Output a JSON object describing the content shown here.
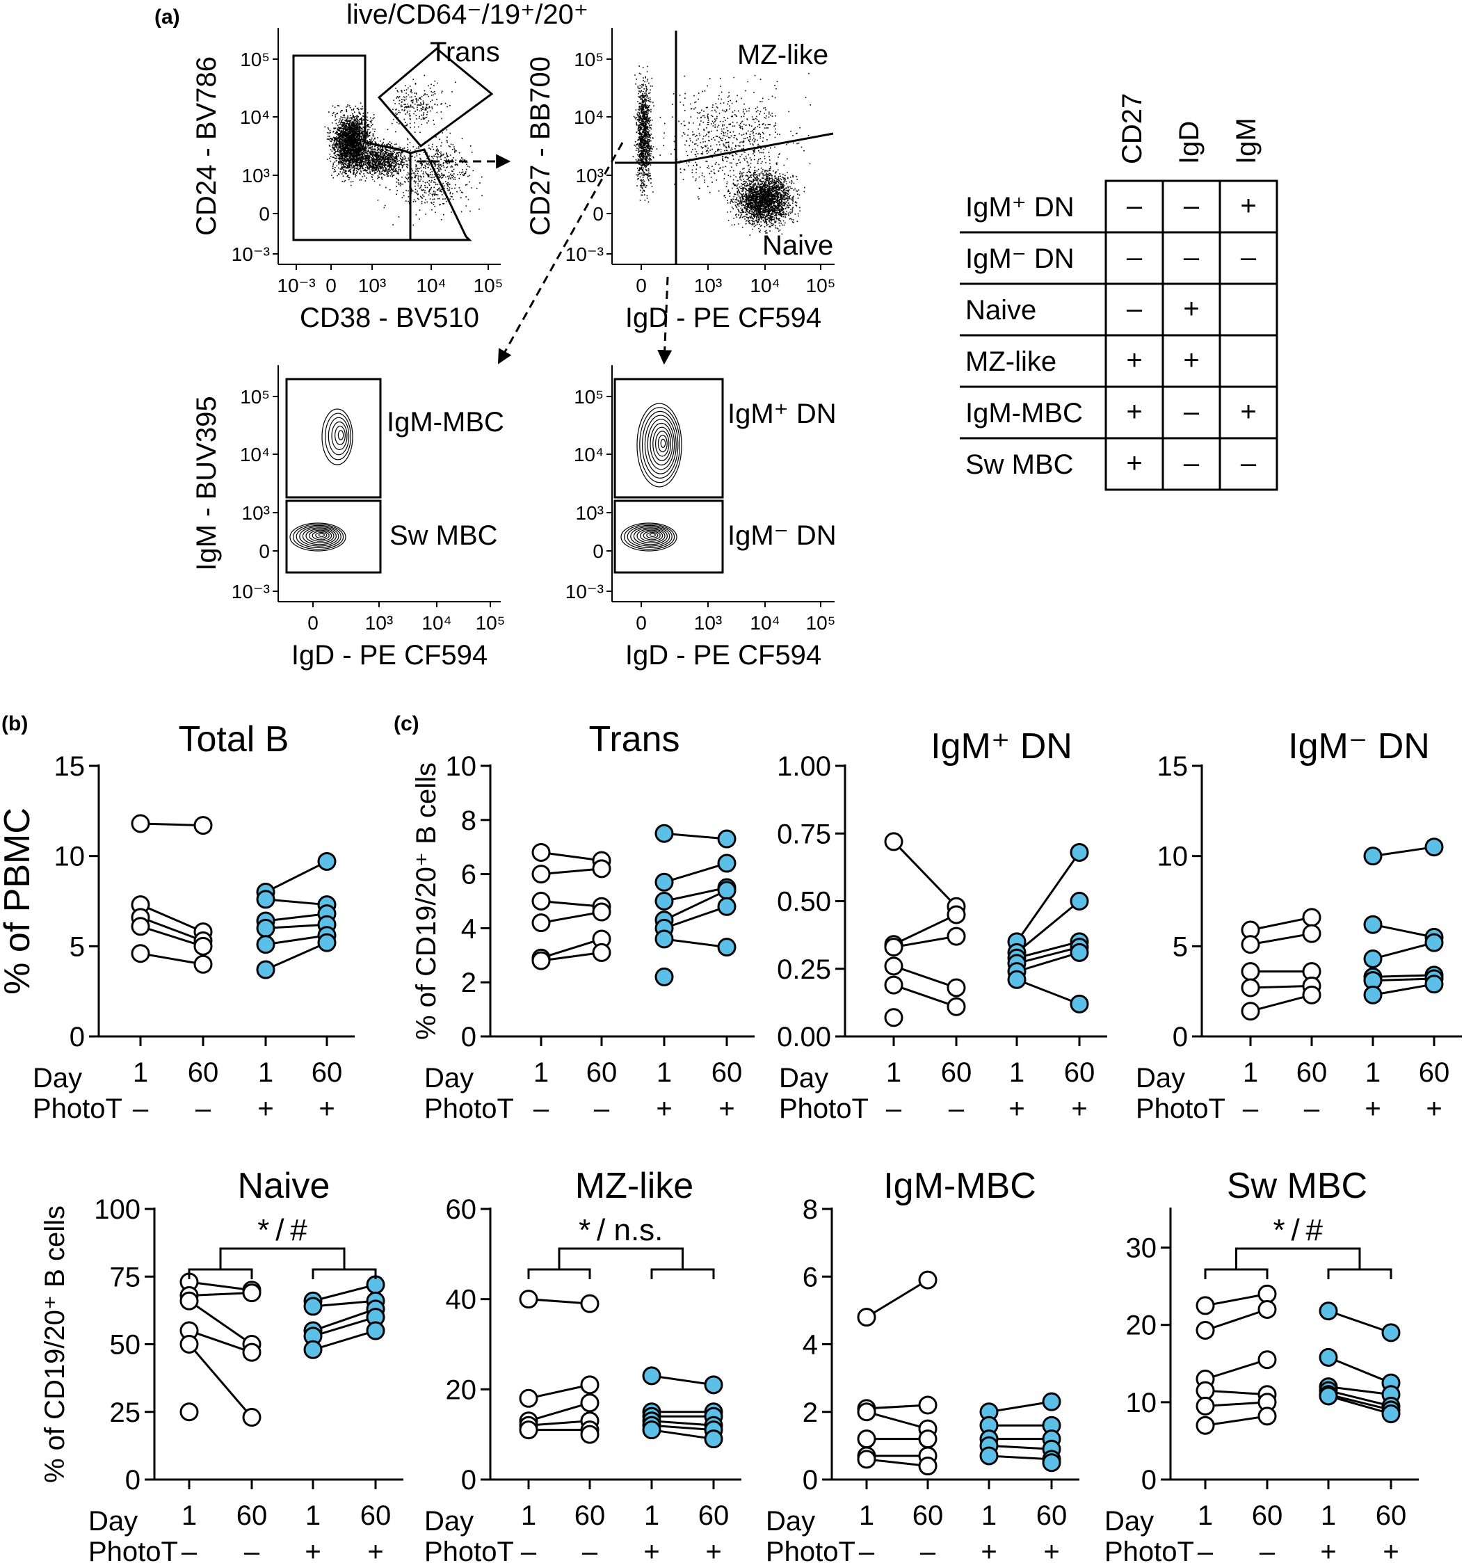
{
  "panel_labels": {
    "a": "(a)",
    "b": "(b)",
    "c": "(c)"
  },
  "facs": {
    "title": "live/CD64⁻/19⁺/20⁺",
    "plots": [
      {
        "id": "cd24-cd38",
        "xlabel": "CD38 - BV510",
        "ylabel": "CD24 - BV786",
        "xticks": [
          "10⁻³",
          "0",
          "10³",
          "10⁴",
          "10⁵"
        ],
        "yticks": [
          "10⁵",
          "10⁴",
          "10³",
          "0",
          "10⁻³"
        ],
        "gates": [
          "Trans"
        ]
      },
      {
        "id": "cd27-igd",
        "xlabel": "IgD - PE CF594",
        "ylabel": "CD27 - BB700",
        "xticks": [
          "0",
          "10³",
          "10⁴",
          "10⁵"
        ],
        "yticks": [
          "10⁵",
          "10⁴",
          "10³",
          "0",
          "10⁻³"
        ],
        "gates": [
          "MZ-like",
          "Naive"
        ]
      },
      {
        "id": "igm-igd-mbc",
        "xlabel": "IgD - PE CF594",
        "ylabel": "IgM - BUV395",
        "xticks": [
          "0",
          "10³",
          "10⁴",
          "10⁵"
        ],
        "yticks": [
          "10⁵",
          "10⁴",
          "10³",
          "0",
          "10⁻³"
        ],
        "gates": [
          "IgM-MBC",
          "Sw MBC"
        ]
      },
      {
        "id": "igm-igd-dn",
        "xlabel": "IgD - PE CF594",
        "ylabel": "",
        "xticks": [
          "0",
          "10³",
          "10⁴",
          "10⁵"
        ],
        "yticks": [
          "10⁵",
          "10⁴",
          "10³",
          "0",
          "10⁻³"
        ],
        "gates": [
          "IgM⁺ DN",
          "IgM⁻ DN"
        ]
      }
    ]
  },
  "phenotype_table": {
    "columns": [
      "CD27",
      "IgD",
      "IgM"
    ],
    "rows": [
      {
        "name": "IgM⁺ DN",
        "values": [
          "–",
          "–",
          "+"
        ]
      },
      {
        "name": "IgM⁻ DN",
        "values": [
          "–",
          "–",
          "–"
        ]
      },
      {
        "name": "Naive",
        "values": [
          "–",
          "+",
          ""
        ]
      },
      {
        "name": "MZ-like",
        "values": [
          "+",
          "+",
          ""
        ]
      },
      {
        "name": "IgM-MBC",
        "values": [
          "+",
          "–",
          "+"
        ]
      },
      {
        "name": "Sw MBC",
        "values": [
          "+",
          "–",
          "–"
        ]
      }
    ]
  },
  "x_labels": {
    "day_label": "Day",
    "photot_label": "PhotoT",
    "days": [
      "1",
      "60",
      "1",
      "60"
    ],
    "photot": [
      "–",
      "–",
      "+",
      "+"
    ]
  },
  "colors": {
    "photot_positive": "#5bbfe8",
    "photot_negative": "#ffffff",
    "line": "#000000"
  },
  "chart_data": [
    {
      "type": "scatter",
      "title": "Total B",
      "ylabel": "% of PBMC",
      "ylim": [
        0,
        15
      ],
      "yticks": [
        "0",
        "5",
        "10",
        "15"
      ],
      "groups": [
        {
          "day": "1",
          "photot": "–",
          "values": [
            11.8,
            7.3,
            6.6,
            6.1,
            4.6
          ]
        },
        {
          "day": "60",
          "photot": "–",
          "values": [
            11.7,
            5.8,
            5.3,
            5.0,
            4.0
          ]
        },
        {
          "day": "1",
          "photot": "+",
          "values": [
            8.0,
            7.6,
            6.4,
            6.0,
            5.1,
            3.7
          ]
        },
        {
          "day": "60",
          "photot": "+",
          "values": [
            9.7,
            7.3,
            6.8,
            6.2,
            5.6,
            5.2
          ]
        }
      ]
    },
    {
      "type": "scatter",
      "title": "Trans",
      "ylabel": "% of CD19/20⁺ B cells",
      "ylim": [
        0,
        10
      ],
      "yticks": [
        "0",
        "2",
        "4",
        "6",
        "8",
        "10"
      ],
      "groups": [
        {
          "day": "1",
          "photot": "–",
          "values": [
            6.8,
            6.0,
            5.0,
            4.2,
            2.9,
            2.8
          ]
        },
        {
          "day": "60",
          "photot": "–",
          "values": [
            6.5,
            6.2,
            4.8,
            4.6,
            3.6,
            3.1
          ]
        },
        {
          "day": "1",
          "photot": "+",
          "values": [
            7.5,
            5.7,
            5.0,
            4.3,
            4.0,
            3.6,
            2.2
          ]
        },
        {
          "day": "60",
          "photot": "+",
          "values": [
            7.3,
            6.4,
            5.5,
            5.4,
            4.8,
            3.3
          ]
        }
      ]
    },
    {
      "type": "scatter",
      "title": "IgM⁺ DN",
      "ylabel": "",
      "ylim": [
        0,
        1.0
      ],
      "yticks": [
        "0.00",
        "0.25",
        "0.50",
        "0.75",
        "1.00"
      ],
      "groups": [
        {
          "day": "1",
          "photot": "–",
          "values": [
            0.72,
            0.34,
            0.33,
            0.26,
            0.19,
            0.07
          ]
        },
        {
          "day": "60",
          "photot": "–",
          "values": [
            0.48,
            0.45,
            0.37,
            0.18,
            0.11
          ]
        },
        {
          "day": "1",
          "photot": "+",
          "values": [
            0.35,
            0.31,
            0.29,
            0.27,
            0.24,
            0.21
          ]
        },
        {
          "day": "60",
          "photot": "+",
          "values": [
            0.68,
            0.5,
            0.35,
            0.33,
            0.31,
            0.12
          ]
        }
      ]
    },
    {
      "type": "scatter",
      "title": "IgM⁻ DN",
      "ylabel": "",
      "ylim": [
        0,
        15
      ],
      "yticks": [
        "0",
        "5",
        "10",
        "15"
      ],
      "groups": [
        {
          "day": "1",
          "photot": "–",
          "values": [
            5.9,
            5.1,
            3.6,
            2.7,
            1.4
          ]
        },
        {
          "day": "60",
          "photot": "–",
          "values": [
            6.6,
            5.7,
            3.6,
            2.8,
            2.3
          ]
        },
        {
          "day": "1",
          "photot": "+",
          "values": [
            10.0,
            6.2,
            4.3,
            3.3,
            3.1,
            2.3
          ]
        },
        {
          "day": "60",
          "photot": "+",
          "values": [
            10.5,
            5.5,
            5.2,
            3.4,
            3.2,
            2.9
          ]
        }
      ]
    },
    {
      "type": "scatter",
      "title": "Naive",
      "ylabel": "% of CD19/20⁺ B cells",
      "ylim": [
        0,
        100
      ],
      "yticks": [
        "0",
        "25",
        "50",
        "75",
        "100"
      ],
      "significance": "* / #",
      "groups": [
        {
          "day": "1",
          "photot": "–",
          "values": [
            73,
            68,
            66,
            55,
            50,
            25
          ]
        },
        {
          "day": "60",
          "photot": "–",
          "values": [
            70,
            69,
            50,
            47,
            23
          ]
        },
        {
          "day": "1",
          "photot": "+",
          "values": [
            66,
            64,
            55,
            53,
            48
          ]
        },
        {
          "day": "60",
          "photot": "+",
          "values": [
            72,
            66,
            63,
            60,
            55
          ]
        }
      ]
    },
    {
      "type": "scatter",
      "title": "MZ-like",
      "ylabel": "",
      "ylim": [
        0,
        60
      ],
      "yticks": [
        "0",
        "20",
        "40",
        "60"
      ],
      "significance": "* / n.s.",
      "groups": [
        {
          "day": "1",
          "photot": "–",
          "values": [
            40,
            18,
            13,
            12,
            11
          ]
        },
        {
          "day": "60",
          "photot": "–",
          "values": [
            39,
            21,
            17,
            13,
            11,
            10
          ]
        },
        {
          "day": "1",
          "photot": "+",
          "values": [
            23,
            15,
            14,
            13,
            12,
            11
          ]
        },
        {
          "day": "60",
          "photot": "+",
          "values": [
            21,
            15,
            14,
            12,
            11,
            9
          ]
        }
      ]
    },
    {
      "type": "scatter",
      "title": "IgM-MBC",
      "ylabel": "",
      "ylim": [
        0,
        8
      ],
      "yticks": [
        "0",
        "2",
        "4",
        "6",
        "8"
      ],
      "groups": [
        {
          "day": "1",
          "photot": "–",
          "values": [
            4.8,
            2.1,
            2.0,
            1.2,
            0.7,
            0.6
          ]
        },
        {
          "day": "60",
          "photot": "–",
          "values": [
            5.9,
            2.2,
            1.5,
            1.2,
            0.7,
            0.4
          ]
        },
        {
          "day": "1",
          "photot": "+",
          "values": [
            2.0,
            1.6,
            1.2,
            1.0,
            0.7
          ]
        },
        {
          "day": "60",
          "photot": "+",
          "values": [
            2.3,
            1.6,
            1.2,
            0.9,
            0.6,
            0.5
          ]
        }
      ]
    },
    {
      "type": "scatter",
      "title": "Sw MBC",
      "ylabel": "",
      "ylim": [
        0,
        35
      ],
      "yticks": [
        "0",
        "10",
        "20",
        "30"
      ],
      "significance": "* / #",
      "groups": [
        {
          "day": "1",
          "photot": "–",
          "values": [
            22.5,
            19.3,
            13.0,
            11.5,
            9.5,
            7.0
          ]
        },
        {
          "day": "60",
          "photot": "–",
          "values": [
            24.0,
            22.0,
            15.5,
            11.0,
            10.0,
            8.2
          ]
        },
        {
          "day": "1",
          "photot": "+",
          "values": [
            21.8,
            15.8,
            12.0,
            11.5,
            11.0,
            10.8
          ]
        },
        {
          "day": "60",
          "photot": "+",
          "values": [
            19.0,
            12.5,
            11.0,
            9.5,
            9.0,
            8.5
          ]
        }
      ]
    }
  ]
}
